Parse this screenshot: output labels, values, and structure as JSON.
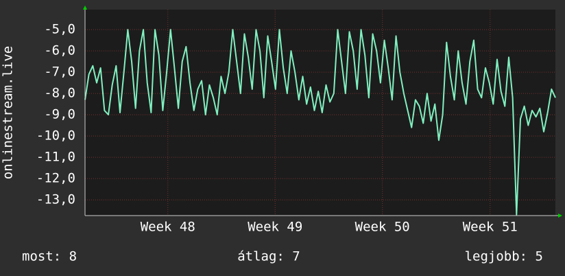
{
  "chart_data": {
    "type": "line",
    "y_label": "onlinestream.live",
    "x": [
      0,
      1,
      2,
      3,
      4,
      5,
      6,
      7,
      8,
      9,
      10,
      11,
      12,
      13,
      14,
      15,
      16,
      17,
      18,
      19,
      20,
      21,
      22,
      23,
      24,
      25,
      26,
      27,
      28,
      29,
      30,
      31,
      32,
      33,
      34,
      35,
      36,
      37,
      38,
      39,
      40,
      41,
      42,
      43,
      44,
      45,
      46,
      47,
      48,
      49,
      50,
      51,
      52,
      53,
      54,
      55,
      56,
      57,
      58,
      59,
      60,
      61,
      62,
      63,
      64,
      65,
      66,
      67,
      68,
      69,
      70,
      71,
      72,
      73,
      74,
      75,
      76,
      77,
      78,
      79,
      80,
      81,
      82,
      83,
      84,
      85,
      86,
      87,
      88,
      89,
      90,
      91,
      92,
      93,
      94,
      95,
      96,
      97,
      98,
      99,
      100,
      101,
      102,
      103,
      104,
      105,
      106,
      107,
      108,
      109,
      110,
      111,
      112,
      113,
      114,
      115,
      116,
      117,
      118,
      119,
      120,
      121
    ],
    "series": [
      {
        "color": "#80f0c0",
        "values": [
          -8.3,
          -7.1,
          -6.7,
          -7.5,
          -6.8,
          -8.8,
          -9.0,
          -7.6,
          -6.7,
          -8.9,
          -7.0,
          -5.0,
          -6.5,
          -8.7,
          -6.0,
          -5.0,
          -7.5,
          -8.9,
          -5.0,
          -6.2,
          -8.8,
          -7.0,
          -5.0,
          -6.8,
          -8.7,
          -6.5,
          -5.8,
          -7.5,
          -8.8,
          -7.8,
          -7.4,
          -9.0,
          -7.6,
          -8.2,
          -9.0,
          -7.2,
          -8.0,
          -7.0,
          -5.0,
          -6.5,
          -8.0,
          -5.2,
          -6.3,
          -7.8,
          -5.0,
          -6.0,
          -8.2,
          -5.3,
          -6.5,
          -7.8,
          -5.0,
          -6.8,
          -8.0,
          -6.0,
          -7.0,
          -8.3,
          -7.2,
          -8.5,
          -7.7,
          -8.8,
          -7.9,
          -8.9,
          -7.6,
          -8.4,
          -8.0,
          -5.0,
          -6.5,
          -8.0,
          -5.1,
          -6.0,
          -7.8,
          -5.0,
          -6.2,
          -8.2,
          -5.2,
          -6.0,
          -7.5,
          -5.5,
          -6.8,
          -8.3,
          -5.3,
          -7.0,
          -8.0,
          -8.8,
          -9.6,
          -8.3,
          -8.6,
          -9.4,
          -8.0,
          -9.3,
          -8.5,
          -10.2,
          -9.0,
          -5.6,
          -7.2,
          -8.3,
          -6.0,
          -7.5,
          -8.5,
          -6.5,
          -5.5,
          -7.8,
          -8.2,
          -6.8,
          -7.5,
          -8.5,
          -6.4,
          -7.9,
          -8.6,
          -6.3,
          -8.2,
          -13.7,
          -9.2,
          -8.6,
          -9.5,
          -8.8,
          -9.1,
          -8.7,
          -9.8,
          -8.9,
          -7.8,
          -8.2
        ]
      }
    ],
    "xlim": [
      0,
      121
    ],
    "xticks": [
      {
        "value": 21.3,
        "label": "Week 48"
      },
      {
        "value": 48.9,
        "label": "Week 49"
      },
      {
        "value": 76.5,
        "label": "Week 50"
      },
      {
        "value": 104.2,
        "label": "Week 51"
      }
    ],
    "ylim": [
      -13.74,
      -4.06
    ],
    "yticks": [
      {
        "value": -5,
        "label": "-5,0"
      },
      {
        "value": -6,
        "label": "-6,0"
      },
      {
        "value": -7,
        "label": "-7,0"
      },
      {
        "value": -8,
        "label": "-8,0"
      },
      {
        "value": -9,
        "label": "-9,0"
      },
      {
        "value": -10,
        "label": "-10,0"
      },
      {
        "value": -11,
        "label": "-11,0"
      },
      {
        "value": -12,
        "label": "-12,0"
      },
      {
        "value": -13,
        "label": "-13,0"
      }
    ],
    "grid": true,
    "footer": [
      "most: 8",
      "átlag: 7",
      "legjobb: 5"
    ]
  }
}
